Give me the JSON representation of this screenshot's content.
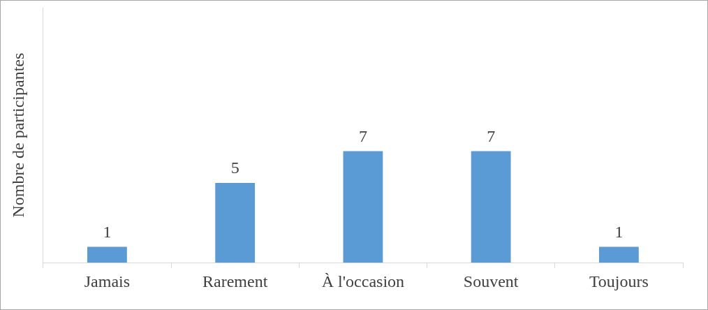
{
  "chart_data": {
    "type": "bar",
    "y_label": "Nombre de participantes",
    "categories": [
      "Jamais",
      "Rarement",
      "À l'occasion",
      "Souvent",
      "Toujours"
    ],
    "values": [
      1,
      5,
      7,
      7,
      1
    ],
    "color": "#5b9bd5",
    "ylim": [
      0,
      16
    ],
    "grid": false,
    "data_labels": true,
    "tick_labels": "x"
  }
}
